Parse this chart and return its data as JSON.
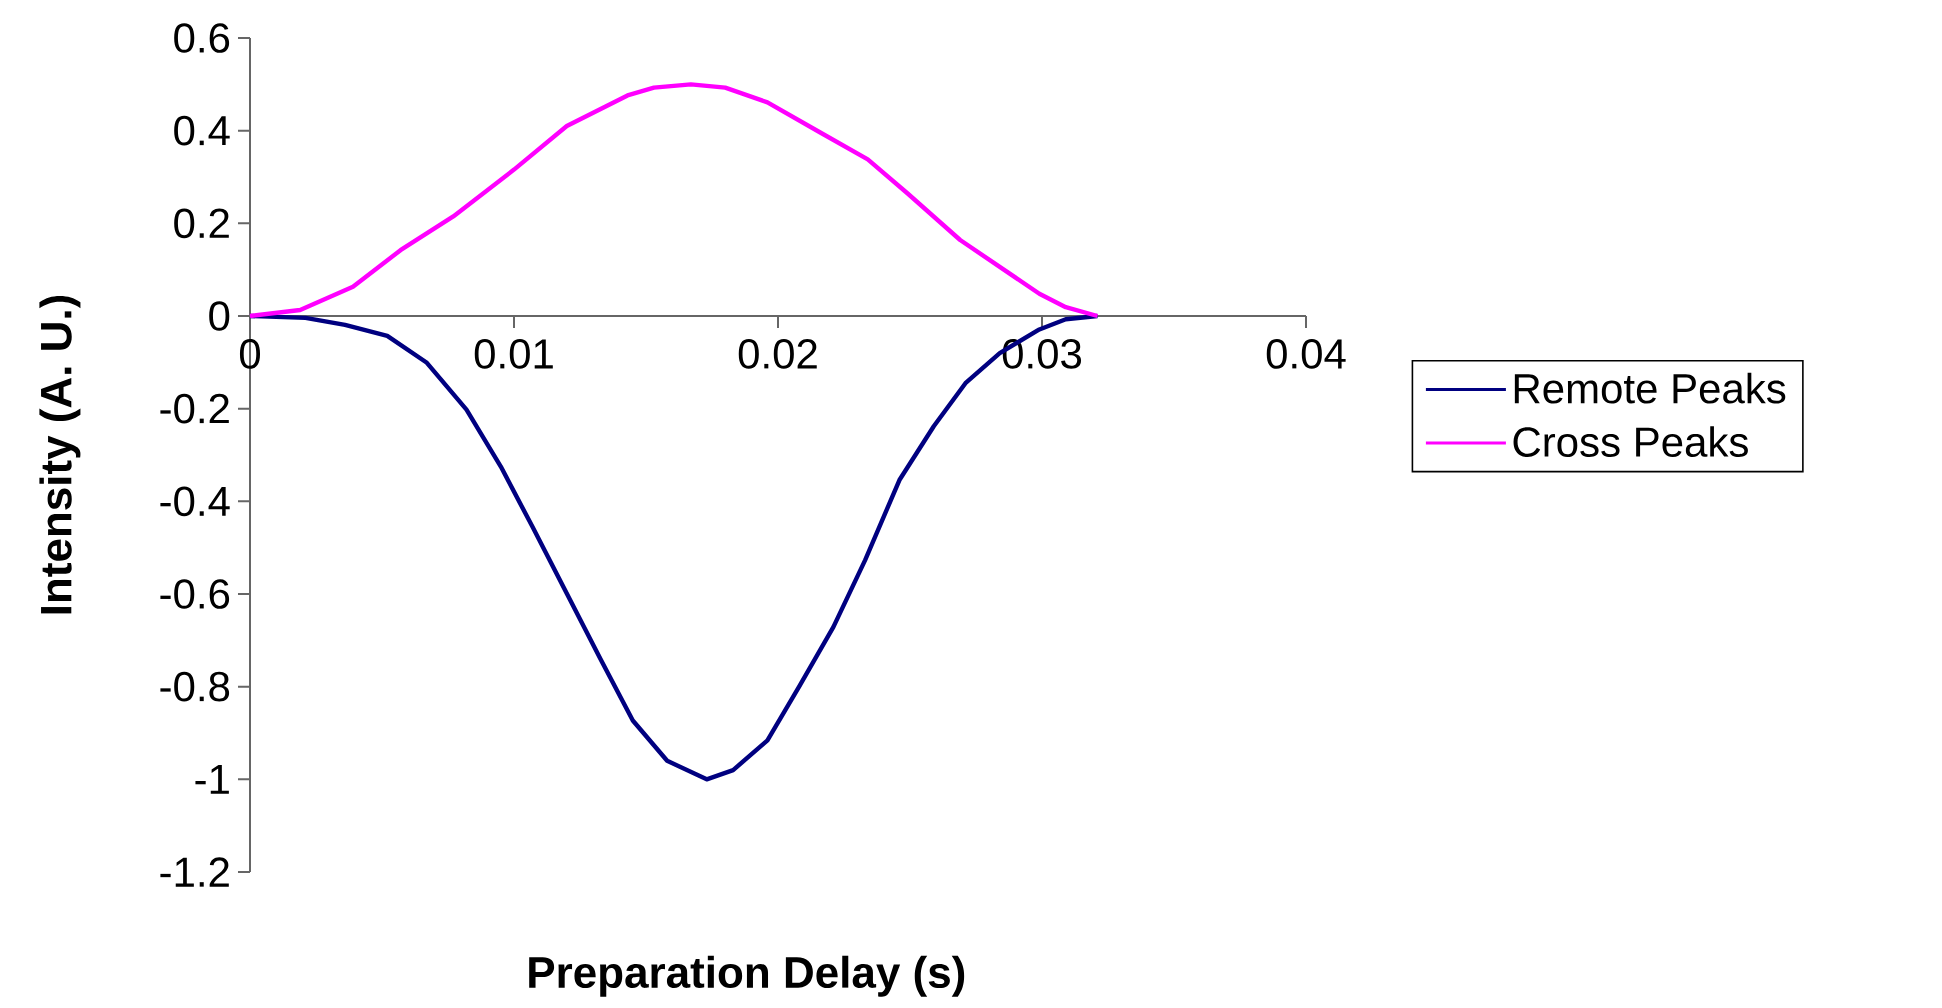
{
  "chart_data": {
    "type": "line",
    "xlabel": "Preparation Delay (s)",
    "ylabel": "Intensity (A. U.)",
    "xlim": [
      0,
      0.04
    ],
    "ylim": [
      -1.2,
      0.6
    ],
    "xticks": [
      0,
      0.01,
      0.02,
      0.03,
      0.04
    ],
    "yticks": [
      -1.2,
      -1,
      -0.8,
      -0.6,
      -0.4,
      -0.2,
      0,
      0.2,
      0.4,
      0.6
    ],
    "grid": false,
    "legend": "right",
    "marker": "none",
    "line_style": "solid",
    "series": [
      {
        "name": "Remote Peaks",
        "color": "#000080",
        "x": [
          0,
          0.0021,
          0.0036,
          0.0052,
          0.0067,
          0.0082,
          0.0095,
          0.0107,
          0.012,
          0.0133,
          0.0145,
          0.0158,
          0.0173,
          0.0183,
          0.0196,
          0.0208,
          0.0221,
          0.0233,
          0.0246,
          0.0259,
          0.0271,
          0.0284,
          0.0299,
          0.0309,
          0.0321
        ],
        "values": [
          0,
          -0.004,
          -0.019,
          -0.043,
          -0.101,
          -0.202,
          -0.325,
          -0.455,
          -0.599,
          -0.743,
          -0.873,
          -0.96,
          -1,
          -0.98,
          -0.916,
          -0.8,
          -0.671,
          -0.527,
          -0.354,
          -0.238,
          -0.145,
          -0.08,
          -0.029,
          -0.007,
          0
        ]
      },
      {
        "name": "Cross Peaks",
        "color": "#ff00ff",
        "x": [
          0,
          0.0019,
          0.0039,
          0.0057,
          0.0077,
          0.01,
          0.012,
          0.0143,
          0.0153,
          0.0167,
          0.018,
          0.0196,
          0.0216,
          0.0234,
          0.0249,
          0.0269,
          0.0284,
          0.0299,
          0.0309,
          0.0321
        ],
        "values": [
          0,
          0.013,
          0.063,
          0.142,
          0.215,
          0.316,
          0.41,
          0.476,
          0.493,
          0.5,
          0.493,
          0.461,
          0.396,
          0.338,
          0.265,
          0.164,
          0.106,
          0.048,
          0.019,
          0
        ]
      }
    ]
  }
}
